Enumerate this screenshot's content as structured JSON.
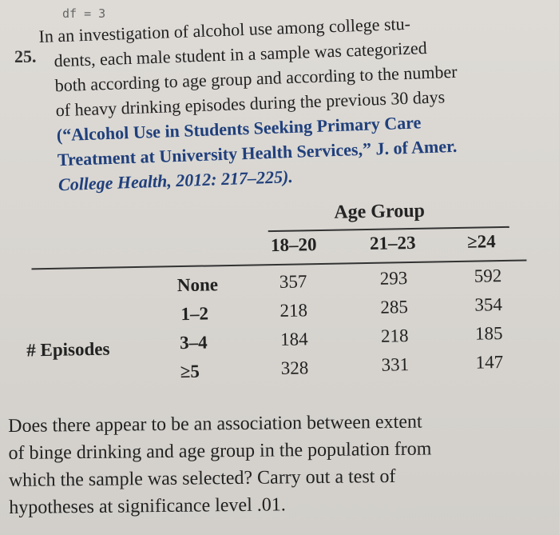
{
  "header": {
    "code": "df = 3"
  },
  "problem": {
    "number": "25.",
    "lines": [
      "In an investigation of alcohol use among college stu-",
      "dents, each male student in a sample was categorized",
      "both according to age group and according to the number",
      "of heavy drinking episodes during the previous 30 days"
    ],
    "citation": [
      "(“Alcohol Use in Students Seeking Primary Care",
      "Treatment at University Health Services,” J. of Amer.",
      "College Health, 2012: 217–225)."
    ]
  },
  "table": {
    "group_label": "Age Group",
    "columns": [
      "18–20",
      "21–23",
      "≥24"
    ],
    "row_group_label": "# Episodes",
    "rows": [
      {
        "label": "None",
        "values": [
          "357",
          "293",
          "592"
        ]
      },
      {
        "label": "1–2",
        "values": [
          "218",
          "285",
          "354"
        ]
      },
      {
        "label": "3–4",
        "values": [
          "184",
          "218",
          "185"
        ]
      },
      {
        "label": "≥5",
        "values": [
          "328",
          "331",
          "147"
        ]
      }
    ]
  },
  "question": {
    "lines": [
      "Does there appear to be an association between extent",
      "of binge drinking and age group in the population from",
      "which the sample was selected? Carry out a test of",
      "hypotheses at significance level .01."
    ]
  }
}
